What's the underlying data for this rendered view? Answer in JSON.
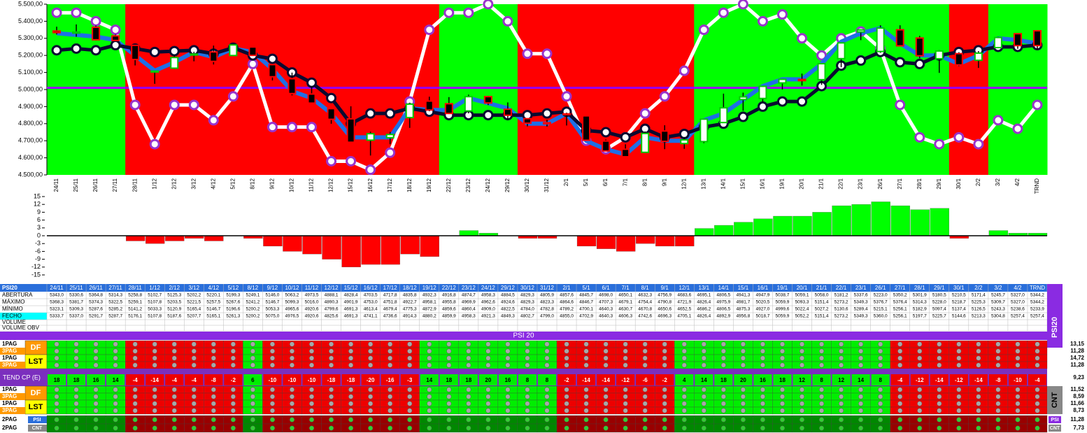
{
  "chart_data": [
    {
      "type": "candlestick",
      "categories": [
        "24/11",
        "25/11",
        "26/11",
        "27/11",
        "28/11",
        "1/12",
        "2/12",
        "3/12",
        "4/12",
        "5/12",
        "8/12",
        "9/12",
        "10/12",
        "11/12",
        "12/12",
        "15/12",
        "16/12",
        "17/12",
        "18/12",
        "19/12",
        "22/12",
        "23/12",
        "24/12",
        "29/12",
        "30/12",
        "31/12",
        "2/1",
        "5/1",
        "6/1",
        "7/1",
        "8/1",
        "9/1",
        "12/1",
        "13/1",
        "14/1",
        "15/1",
        "16/1",
        "19/1",
        "20/1",
        "21/1",
        "22/1",
        "23/1",
        "26/1",
        "27/1",
        "28/1",
        "29/1",
        "30/1",
        "2/2",
        "3/2",
        "4/2",
        "TRND"
      ],
      "ohlc": [
        {
          "name": "ABERTURA",
          "values": [
            5343.0,
            5330.6,
            5364.8,
            5314.3,
            5258.8,
            5102.7,
            5125.3,
            5202.2,
            5220.1,
            5199.3,
            5249.1,
            5146.0,
            5063.2,
            4973.5,
            4888.1,
            4828.4,
            4703.5,
            4717.8,
            4835.8,
            4932.3,
            4916.8,
            4874.7,
            4958.3,
            4884.5,
            4829.3,
            4805.9,
            4857.6,
            4845.7,
            4698.0,
            4650.1,
            4632.3,
            4756.9,
            4683.6,
            4695.1,
            4806.5,
            4941.3,
            4947.9,
            5038.7,
            5059.1,
            5058.0,
            5181.2,
            5337.6,
            5223.0,
            5350.2,
            5301.9,
            5180.5,
            5210.5,
            5171.4,
            5245.7,
            5327.0,
            5344.2
          ],
          "value_labels": [
            "5343,0",
            "5330,6",
            "5364,8",
            "5314,3",
            "5258,8",
            "5102,7",
            "5125,3",
            "5202,2",
            "5220,1",
            "5199,3",
            "5249,1",
            "5146,0",
            "5063,2",
            "4973,5",
            "4888,1",
            "4828,4",
            "4703,5",
            "4717,8",
            "4835,8",
            "4932,3",
            "4916,8",
            "4874,7",
            "4958,3",
            "4884,5",
            "4829,3",
            "4805,9",
            "4857,6",
            "4845,7",
            "4698,0",
            "4650,1",
            "4632,3",
            "4756,9",
            "4683,6",
            "4695,1",
            "4806,5",
            "4941,3",
            "4947,9",
            "5038,7",
            "5059,1",
            "5058,0",
            "5181,2",
            "5337,6",
            "5223,0",
            "5350,2",
            "5301,9",
            "5180,5",
            "5210,5",
            "5171,4",
            "5245,7",
            "5327,0",
            "5344,2"
          ]
        },
        {
          "name": "MÁXIMO",
          "values": [
            5368.3,
            5381.7,
            5374.3,
            5322.5,
            5259.1,
            5107.8,
            5203.5,
            5221.5,
            5257.5,
            5267.6,
            5241.2,
            5146.7,
            5099.3,
            5016.0,
            4890.3,
            4901.9,
            4753.0,
            4751.8,
            4922.7,
            4958.1,
            4955.8,
            4969.9,
            4962.6,
            4924.6,
            4829.3,
            4823.3,
            4864.6,
            4846.7,
            4707.3,
            4679.1,
            4754.4,
            4790.8,
            4721.9,
            4826.4,
            4975.9,
            4981.7,
            5020.5,
            5059.9,
            5093.3,
            5151.4,
            5273.2,
            5349.3,
            5376.7,
            5376.4,
            5314.3,
            5228.0,
            5218.7,
            5225.3,
            5309.7,
            5327.0,
            5344.2
          ],
          "value_labels": [
            "5368,3",
            "5381,7",
            "5374,3",
            "5322,5",
            "5259,1",
            "5107,8",
            "5203,5",
            "5221,5",
            "5257,5",
            "5267,6",
            "5241,2",
            "5146,7",
            "5099,3",
            "5016,0",
            "4890,3",
            "4901,9",
            "4753,0",
            "4751,8",
            "4922,7",
            "4958,1",
            "4955,8",
            "4969,9",
            "4962,6",
            "4924,6",
            "4829,3",
            "4823,3",
            "4864,6",
            "4846,7",
            "4707,3",
            "4679,1",
            "4754,4",
            "4790,8",
            "4721,9",
            "4826,4",
            "4975,9",
            "4981,7",
            "5020,5",
            "5059,9",
            "5093,3",
            "5151,4",
            "5273,2",
            "5349,3",
            "5376,7",
            "5376,4",
            "5314,3",
            "5228,0",
            "5218,7",
            "5225,3",
            "5309,7",
            "5327,0",
            "5344,2"
          ]
        },
        {
          "name": "MÍNIMO",
          "values": [
            5323.1,
            5309.3,
            5287.6,
            5285.2,
            5141.2,
            5033.3,
            5120.9,
            5165.4,
            5146.7,
            5196.6,
            5200.2,
            5053.3,
            4965.6,
            4920.6,
            4799.6,
            4691.3,
            4613.4,
            4679.4,
            4775.3,
            4872.9,
            4859.6,
            4860.4,
            4909.0,
            4822.5,
            4784.0,
            4782.8,
            4789.2,
            4700.1,
            4640.3,
            4630.7,
            4670.8,
            4650.6,
            4652.5,
            4686.2,
            4806.5,
            4875.3,
            4927.0,
            4999.6,
            5022.4,
            5027.2,
            5130.6,
            5289.4,
            5215.1,
            5256.1,
            5182.9,
            5097.4,
            5137.4,
            5126.5,
            5243.3,
            5238.6,
            5233.9
          ],
          "value_labels": [
            "5323,1",
            "5309,3",
            "5287,6",
            "5285,2",
            "5141,2",
            "5033,3",
            "5120,9",
            "5165,4",
            "5146,7",
            "5196,6",
            "5200,2",
            "5053,3",
            "4965,6",
            "4920,6",
            "4799,6",
            "4691,3",
            "4613,4",
            "4679,4",
            "4775,3",
            "4872,9",
            "4859,6",
            "4860,4",
            "4909,0",
            "4822,5",
            "4784,0",
            "4782,8",
            "4789,2",
            "4700,1",
            "4640,3",
            "4630,7",
            "4670,8",
            "4650,6",
            "4652,5",
            "4686,2",
            "4806,5",
            "4875,3",
            "4927,0",
            "4999,6",
            "5022,4",
            "5027,2",
            "5130,6",
            "5289,4",
            "5215,1",
            "5256,1",
            "5182,9",
            "5097,4",
            "5137,4",
            "5126,5",
            "5243,3",
            "5238,6",
            "5233,9"
          ]
        },
        {
          "name": "FECHO",
          "values": [
            5333.7,
            5337.0,
            5291.7,
            5287.7,
            5176.1,
            5107.8,
            5187.6,
            5207.7,
            5165.1,
            5261.3,
            5200.2,
            5075.0,
            4976.5,
            4920.6,
            4825.6,
            4691.3,
            4741.1,
            4736.6,
            4914.3,
            4880.2,
            4859.9,
            4958.3,
            4921.3,
            4849.3,
            4802.7,
            4799.0,
            4855.0,
            4702.9,
            4640.3,
            4606.3,
            4742.6,
            4696.3,
            4705.1,
            4826.4,
            4892.9,
            4956.8,
            5018.7,
            5059.9,
            5052.2,
            5151.4,
            5273.2,
            5349.3,
            5360.0,
            5256.1,
            5197.7,
            5225.7,
            5144.6,
            5213.3,
            5304.8,
            5257.4,
            5257.4
          ],
          "value_labels": [
            "5333,7",
            "5337,0",
            "5291,7",
            "5287,7",
            "5176,1",
            "5107,8",
            "5187,6",
            "5207,7",
            "5165,1",
            "5261,3",
            "5200,2",
            "5075,0",
            "4976,5",
            "4920,6",
            "4825,6",
            "4691,3",
            "4741,1",
            "4736,6",
            "4914,3",
            "4880,2",
            "4859,9",
            "4958,3",
            "4921,3",
            "4849,3",
            "4802,7",
            "4799,0",
            "4855,0",
            "4702,9",
            "4640,3",
            "4606,3",
            "4742,6",
            "4696,3",
            "4705,1",
            "4826,4",
            "4892,9",
            "4956,8",
            "5018,7",
            "5059,9",
            "5052,2",
            "5151,4",
            "5273,2",
            "5349,3",
            "5360,0",
            "5256,1",
            "5197,7",
            "5225,7",
            "5144,6",
            "5213,3",
            "5304,8",
            "5257,4",
            "5257,4"
          ]
        }
      ],
      "series": [
        {
          "color": "#ffffff",
          "marker_color": "#9933cc",
          "values": [
            5450,
            5450,
            5400,
            5350,
            4910,
            4680,
            4910,
            4910,
            4820,
            4960,
            5150,
            4780,
            4780,
            4780,
            4580,
            4580,
            4530,
            4630,
            4930,
            5350,
            5450,
            5450,
            5500,
            5400,
            5210,
            5210,
            4960,
            4700,
            4650,
            4720,
            4860,
            4960,
            5110,
            5350,
            5450,
            5500,
            5400,
            5440,
            5300,
            5200,
            5300,
            5340,
            5240,
            4910,
            4720,
            4680,
            4720,
            4680,
            4820,
            4770,
            4910
          ]
        },
        {
          "color": "#1e6fe6",
          "values": [
            5330,
            5320,
            5310,
            5290,
            5200,
            5110,
            5160,
            5220,
            5190,
            5240,
            5220,
            5120,
            4990,
            4950,
            4860,
            4720,
            4720,
            4720,
            4890,
            4880,
            4880,
            4950,
            4920,
            4890,
            4800,
            4800,
            4860,
            4700,
            4650,
            4620,
            4720,
            4700,
            4700,
            4820,
            4860,
            4940,
            5020,
            5060,
            5060,
            5150,
            5280,
            5330,
            5360,
            5270,
            5200,
            5200,
            5150,
            5200,
            5300,
            5290,
            5270
          ]
        },
        {
          "color": "#0a0a30",
          "marker_color": "#ffffff",
          "values": [
            5230,
            5240,
            5230,
            5260,
            5240,
            5220,
            5225,
            5230,
            5210,
            5245,
            5200,
            5180,
            5100,
            5040,
            4950,
            4800,
            4860,
            4860,
            4890,
            4870,
            4850,
            4850,
            4850,
            4850,
            4850,
            4860,
            4870,
            4760,
            4750,
            4720,
            4770,
            4720,
            4740,
            4780,
            4800,
            4840,
            4900,
            4930,
            4930,
            5020,
            5140,
            5170,
            5220,
            5160,
            5150,
            5200,
            5220,
            5230,
            5250,
            5250,
            5260
          ]
        }
      ],
      "hline": {
        "value": 5010,
        "color": "#9900ff"
      },
      "up_color": "#00cc00",
      "down_color": "#ff0000",
      "background_colors": [
        "#00ff00",
        "#00ff00",
        "#00ff00",
        "#00ff00",
        "#ff0000",
        "#ff0000",
        "#ff0000",
        "#ff0000",
        "#ff0000",
        "#ff0000",
        "#ff0000",
        "#ff0000",
        "#ff0000",
        "#ff0000",
        "#ff0000",
        "#ff0000",
        "#ff0000",
        "#ff0000",
        "#ff0000",
        "#ff0000",
        "#00ff00",
        "#00ff00",
        "#00ff00",
        "#00ff00",
        "#ff0000",
        "#ff0000",
        "#ff0000",
        "#ff0000",
        "#ff0000",
        "#ff0000",
        "#ff0000",
        "#ff0000",
        "#ff0000",
        "#00ff00",
        "#00ff00",
        "#00ff00",
        "#00ff00",
        "#00ff00",
        "#00ff00",
        "#00ff00",
        "#00ff00",
        "#00ff00",
        "#00ff00",
        "#00ff00",
        "#00ff00",
        "#00ff00",
        "#ff0000",
        "#ff0000",
        "#00ff00",
        "#00ff00",
        "#00ff00"
      ],
      "ylim": [
        4500,
        5500
      ],
      "yticks": [
        {
          "value": 4500,
          "label": "4.500,00"
        },
        {
          "value": 4600,
          "label": "4.600,00"
        },
        {
          "value": 4700,
          "label": "4.700,00"
        },
        {
          "value": 4800,
          "label": "4.800,00"
        },
        {
          "value": 4900,
          "label": "4.900,00"
        },
        {
          "value": 5000,
          "label": "5.000,00"
        },
        {
          "value": 5100,
          "label": "5.100,00"
        },
        {
          "value": 5200,
          "label": "5.200,00"
        },
        {
          "value": 5300,
          "label": "5.300,00"
        },
        {
          "value": 5400,
          "label": "5.400,00"
        },
        {
          "value": 5500,
          "label": "5.500,00"
        }
      ]
    },
    {
      "type": "bar",
      "values": [
        0,
        0,
        0,
        0,
        -2,
        -3,
        -2,
        -1,
        -2,
        0,
        -1,
        -4,
        -6,
        -7,
        -9,
        -12,
        -11,
        -11,
        -7,
        -8,
        0,
        2,
        1,
        0,
        -1,
        -1,
        0,
        -4,
        -5,
        -6,
        -3,
        -4,
        -4,
        2.8,
        4,
        5.2,
        6.5,
        7.5,
        7.5,
        9,
        11.5,
        12,
        13,
        11.5,
        10,
        10.5,
        -1,
        0,
        2,
        1,
        1
      ],
      "color": "#00ff00",
      "negative_color": "#ff0000",
      "ylim": [
        -15,
        15
      ],
      "yticks": [
        15,
        12,
        9,
        6,
        3,
        0,
        -3,
        -6,
        -9,
        -12,
        -15
      ]
    }
  ],
  "table": {
    "corner": "PSI20",
    "rows": [
      "VOLUME",
      "VOLUME OBV"
    ]
  },
  "indicators": {
    "band_title": "PSI 20",
    "side_title": "PSI20",
    "side_title2": "CNT",
    "groups": [
      {
        "badge": "DF",
        "rows": [
          {
            "label": "1PAG",
            "total": "13,15"
          },
          {
            "label": "3PAG",
            "total": "11,28"
          }
        ]
      },
      {
        "badge": "LST",
        "rows": [
          {
            "label": "1PAG",
            "total": "14,72"
          },
          {
            "label": "3PAG",
            "total": "11,28"
          }
        ]
      }
    ],
    "tend": {
      "label": "TEND CP (E)",
      "total": "9,23",
      "values": [
        18,
        18,
        16,
        14,
        -4,
        -14,
        -4,
        -4,
        -8,
        -2,
        6,
        -10,
        -10,
        -10,
        -18,
        -18,
        -20,
        -16,
        -3,
        14,
        18,
        18,
        20,
        16,
        8,
        8,
        -2,
        -14,
        -14,
        -12,
        -6,
        -2,
        4,
        14,
        18,
        20,
        16,
        18,
        12,
        8,
        12,
        14,
        8,
        -4,
        -12,
        -14,
        -12,
        -14,
        -8,
        -10,
        -4
      ]
    },
    "groups2": [
      {
        "badge": "DF",
        "rows": [
          {
            "label": "1PAG",
            "total": "11,52"
          },
          {
            "label": "3PAG",
            "total": "8,59"
          }
        ]
      },
      {
        "badge": "LST",
        "rows": [
          {
            "label": "1PAG",
            "total": "11,66"
          },
          {
            "label": "3PAG",
            "total": "8,73"
          }
        ]
      }
    ],
    "pag2": [
      {
        "label": "2PAG",
        "badge": "PSI",
        "total": "11,28"
      },
      {
        "label": "2PAG",
        "badge": "CNT",
        "total": "7,73"
      }
    ]
  }
}
